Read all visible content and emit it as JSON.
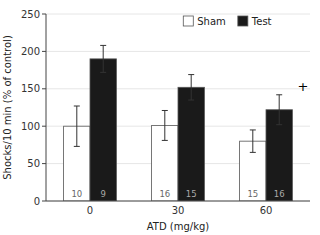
{
  "chart_data": {
    "type": "bar",
    "categories": [
      "0",
      "30",
      "60"
    ],
    "series": [
      {
        "name": "Sham",
        "color": "#ffffff",
        "values": [
          100,
          101,
          80
        ],
        "errors": [
          27,
          20,
          15
        ],
        "n": [
          10,
          16,
          15
        ]
      },
      {
        "name": "Test",
        "color": "#1a1a1a",
        "values": [
          190,
          152,
          122
        ],
        "errors": [
          18,
          17,
          20
        ],
        "n": [
          9,
          15,
          16
        ]
      }
    ],
    "xlabel": "ATD (mg/kg)",
    "ylabel": "Shocks/10 min (% of control)",
    "ylim": [
      0,
      250
    ],
    "yticks": [
      0,
      50,
      100,
      150,
      200,
      250
    ],
    "annotations": [
      {
        "text": "+",
        "series": 1,
        "index": 2
      }
    ],
    "legend": "top"
  }
}
